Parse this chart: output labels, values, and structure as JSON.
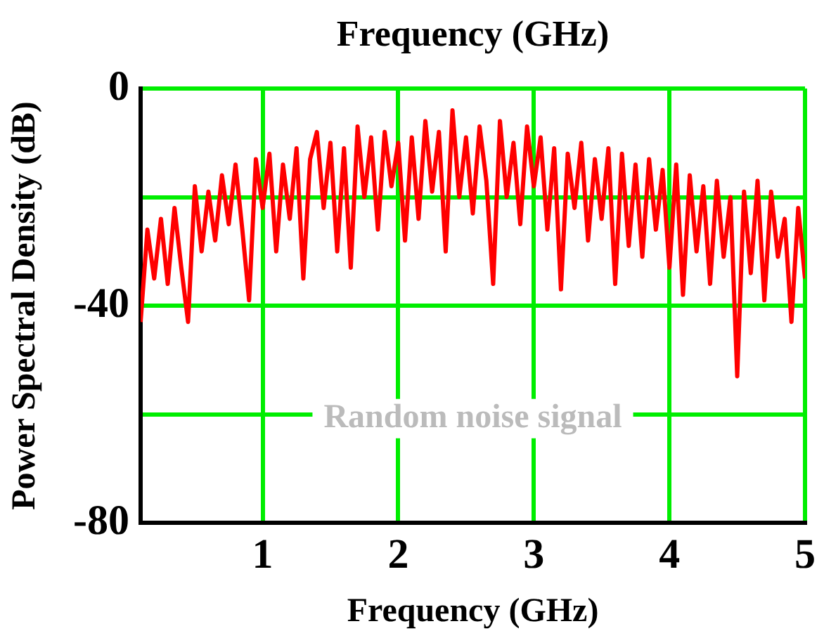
{
  "chart_data": {
    "type": "line",
    "title": "Frequency (GHz)",
    "xlabel": "Frequency (GHz)",
    "ylabel": "Power Spectral Density (dB)",
    "annotations": [
      "Random noise signal"
    ],
    "x": [
      0.1,
      0.15,
      0.2,
      0.25,
      0.3,
      0.35,
      0.4,
      0.45,
      0.5,
      0.55,
      0.6,
      0.65,
      0.7,
      0.75,
      0.8,
      0.85,
      0.9,
      0.95,
      1.0,
      1.05,
      1.1,
      1.15,
      1.2,
      1.25,
      1.3,
      1.35,
      1.4,
      1.45,
      1.5,
      1.55,
      1.6,
      1.65,
      1.7,
      1.75,
      1.8,
      1.85,
      1.9,
      1.95,
      2.0,
      2.05,
      2.1,
      2.15,
      2.2,
      2.25,
      2.3,
      2.35,
      2.4,
      2.45,
      2.5,
      2.55,
      2.6,
      2.65,
      2.7,
      2.75,
      2.8,
      2.85,
      2.9,
      2.95,
      3.0,
      3.05,
      3.1,
      3.15,
      3.2,
      3.25,
      3.3,
      3.35,
      3.4,
      3.45,
      3.5,
      3.55,
      3.6,
      3.65,
      3.7,
      3.75,
      3.8,
      3.85,
      3.9,
      3.95,
      4.0,
      4.05,
      4.1,
      4.15,
      4.2,
      4.25,
      4.3,
      4.35,
      4.4,
      4.45,
      4.5,
      4.55,
      4.6,
      4.65,
      4.7,
      4.75,
      4.8,
      4.85,
      4.9,
      4.95,
      5.0
    ],
    "series": [
      {
        "color": "#ff0000",
        "values": [
          -43,
          -26,
          -35,
          -24,
          -36,
          -22,
          -33,
          -43,
          -18,
          -30,
          -19,
          -28,
          -16,
          -25,
          -14,
          -26,
          -39,
          -13,
          -22,
          -12,
          -30,
          -14,
          -24,
          -11,
          -35,
          -13,
          -8,
          -22,
          -10,
          -30,
          -11,
          -33,
          -7,
          -20,
          -9,
          -26,
          -8,
          -18,
          -10,
          -28,
          -9,
          -24,
          -6,
          -19,
          -8,
          -30,
          -4,
          -20,
          -9,
          -23,
          -7,
          -17,
          -36,
          -6,
          -20,
          -10,
          -25,
          -7,
          -18,
          -9,
          -26,
          -11,
          -37,
          -12,
          -22,
          -10,
          -28,
          -13,
          -24,
          -11,
          -36,
          -12,
          -29,
          -14,
          -31,
          -13,
          -26,
          -15,
          -33,
          -14,
          -38,
          -16,
          -30,
          -18,
          -36,
          -17,
          -31,
          -20,
          -53,
          -19,
          -34,
          -17,
          -39,
          -19,
          -31,
          -24,
          -43,
          -22,
          -35
        ]
      }
    ],
    "xlim": [
      0.1,
      5
    ],
    "xticks": [
      1,
      2,
      3,
      4,
      5
    ],
    "ylim": [
      -80,
      0
    ],
    "yticks": [
      0,
      {
        "value": -20,
        "label": null
      },
      -40,
      {
        "value": -60,
        "label": null
      },
      -80
    ],
    "grid": true,
    "legend": false,
    "marker": "none",
    "line_style": "solid"
  }
}
